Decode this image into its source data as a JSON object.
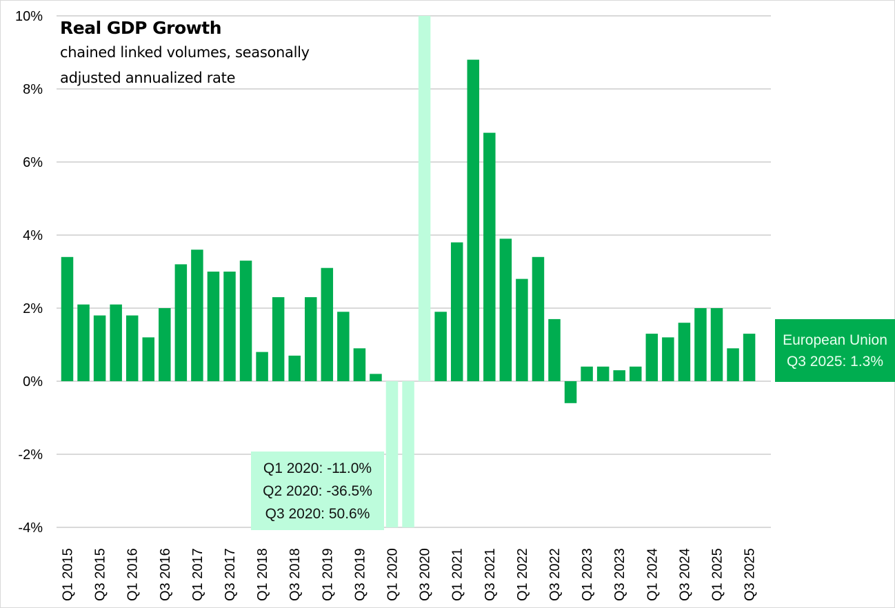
{
  "chart_data": {
    "type": "bar",
    "title": "Real GDP Growth",
    "subtitle_lines": [
      "chained linked volumes, seasonally",
      "adjusted annualized rate"
    ],
    "xlabel": "",
    "ylabel": "",
    "ylim": [
      -4,
      10
    ],
    "yticks": [
      -4,
      -2,
      0,
      2,
      4,
      6,
      8,
      10
    ],
    "ytick_labels": [
      "-4%",
      "-2%",
      "0%",
      "2%",
      "4%",
      "6%",
      "8%",
      "10%"
    ],
    "grid": true,
    "legend": "none",
    "colors": {
      "normal": "#00ad50",
      "outlier": "#bdfcdc",
      "gridline": "#d9d9d9"
    },
    "categories": [
      "Q1 2015",
      "Q2 2015",
      "Q3 2015",
      "Q4 2015",
      "Q1 2016",
      "Q2 2016",
      "Q3 2016",
      "Q4 2016",
      "Q1 2017",
      "Q2 2017",
      "Q3 2017",
      "Q4 2017",
      "Q1 2018",
      "Q2 2018",
      "Q3 2018",
      "Q4 2018",
      "Q1 2019",
      "Q2 2019",
      "Q3 2019",
      "Q4 2019",
      "Q1 2020",
      "Q2 2020",
      "Q3 2020",
      "Q4 2020",
      "Q1 2021",
      "Q2 2021",
      "Q3 2021",
      "Q4 2021",
      "Q1 2022",
      "Q2 2022",
      "Q3 2022",
      "Q4 2022",
      "Q1 2023",
      "Q2 2023",
      "Q3 2023",
      "Q4 2023",
      "Q1 2024",
      "Q2 2024",
      "Q3 2024",
      "Q4 2024",
      "Q1 2025",
      "Q2 2025",
      "Q3 2025"
    ],
    "visible_tick_labels": [
      "Q1 2015",
      "Q3 2015",
      "Q1 2016",
      "Q3 2016",
      "Q1 2017",
      "Q3 2017",
      "Q1 2018",
      "Q3 2018",
      "Q1 2019",
      "Q3 2019",
      "Q1 2020",
      "Q3 2020",
      "Q1 2021",
      "Q3 2021",
      "Q1 2022",
      "Q3 2022",
      "Q1 2023",
      "Q3 2023",
      "Q1 2024",
      "Q3 2024",
      "Q1 2025",
      "Q3 2025"
    ],
    "series": [
      {
        "name": "European Union",
        "values": [
          3.4,
          2.1,
          1.8,
          2.1,
          1.8,
          1.2,
          2.0,
          3.2,
          3.6,
          3.0,
          3.0,
          3.3,
          0.8,
          2.3,
          0.7,
          2.3,
          3.1,
          1.9,
          0.9,
          0.2,
          -11.0,
          -36.5,
          50.6,
          1.9,
          3.8,
          8.8,
          6.8,
          3.9,
          2.8,
          3.4,
          1.7,
          -0.6,
          0.4,
          0.4,
          0.3,
          0.4,
          1.3,
          1.2,
          1.6,
          2.0,
          2.0,
          0.9,
          1.3
        ]
      }
    ],
    "outlier_categories": [
      "Q1 2020",
      "Q2 2020",
      "Q3 2020"
    ],
    "annotations": {
      "covid_lines": [
        "Q1 2020: -11.0%",
        "Q2 2020: -36.5%",
        "Q3 2020: 50.6%"
      ],
      "latest_lines": [
        "European Union",
        "Q3 2025: 1.3%"
      ]
    }
  }
}
